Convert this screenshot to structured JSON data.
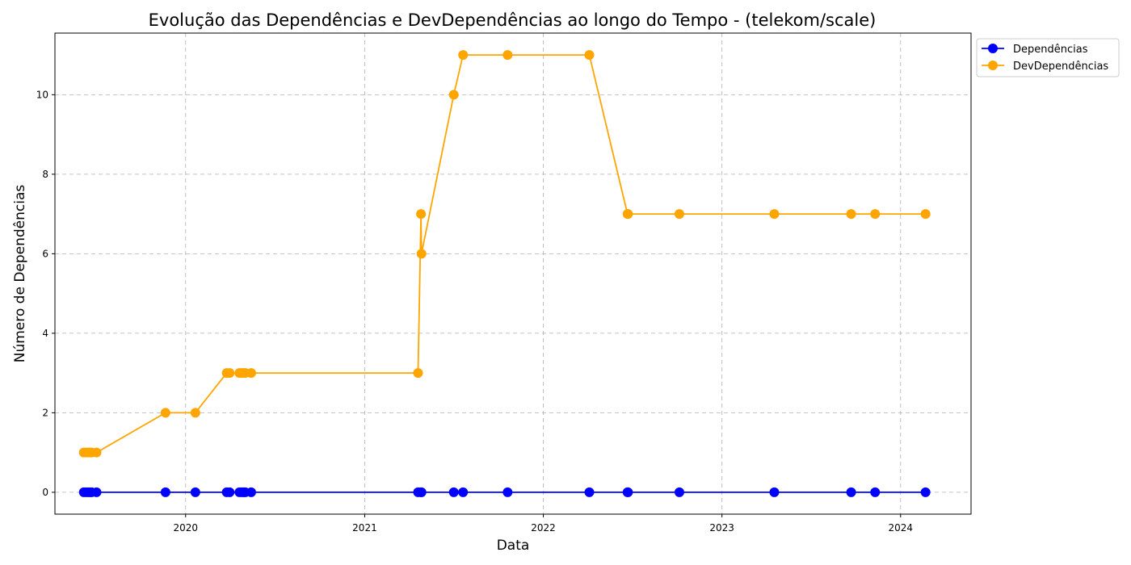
{
  "chart_data": {
    "type": "line",
    "title": "Evolução das Dependências e DevDependências ao longo do Tempo - (telekom/scale)",
    "xlabel": "Data",
    "ylabel": "Número de Dependências",
    "xlim": [
      "2019-04-09",
      "2024-05-24"
    ],
    "ylim": [
      -0.55,
      11.55
    ],
    "x_ticks": [
      "2020",
      "2021",
      "2022",
      "2023",
      "2024"
    ],
    "y_ticks": [
      0,
      2,
      4,
      6,
      8,
      10
    ],
    "grid": true,
    "legend_position": "upper right outside",
    "x": [
      "2019-06-07",
      "2019-06-12",
      "2019-06-16",
      "2019-06-20",
      "2019-06-23",
      "2019-07-03",
      "2019-11-21",
      "2020-01-21",
      "2020-03-25",
      "2020-03-31",
      "2020-04-20",
      "2020-04-25",
      "2020-04-29",
      "2020-05-02",
      "2020-05-14",
      "2021-04-20",
      "2021-04-26",
      "2021-04-27",
      "2021-07-02",
      "2021-07-21",
      "2021-10-20",
      "2022-04-05",
      "2022-06-22",
      "2022-06-23",
      "2022-10-06",
      "2023-04-18",
      "2023-09-22",
      "2023-11-10",
      "2024-02-21"
    ],
    "series": [
      {
        "name": "Dependências",
        "color": "#0000ff",
        "values": [
          0,
          0,
          0,
          0,
          0,
          0,
          0,
          0,
          0,
          0,
          0,
          0,
          0,
          0,
          0,
          0,
          0,
          0,
          0,
          0,
          0,
          0,
          0,
          0,
          0,
          0,
          0,
          0,
          0
        ]
      },
      {
        "name": "DevDependências",
        "color": "#ffa500",
        "values": [
          1,
          1,
          1,
          1,
          1,
          1,
          2,
          2,
          3,
          3,
          3,
          3,
          3,
          3,
          3,
          3,
          7,
          6,
          10,
          11,
          11,
          11,
          7,
          7,
          7,
          7,
          7,
          7,
          7
        ]
      }
    ]
  }
}
